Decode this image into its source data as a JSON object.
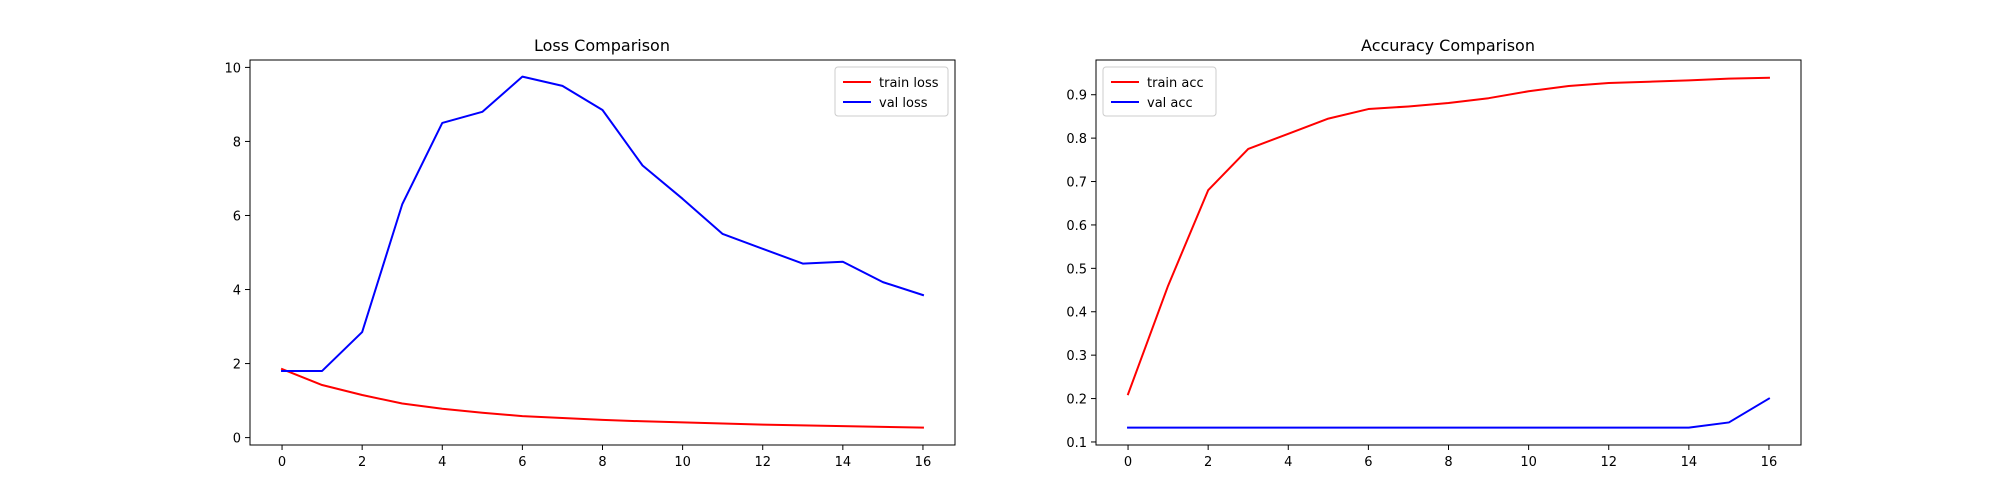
{
  "chart_data": [
    {
      "type": "line",
      "title": "Loss Comparison",
      "xlabel": "",
      "ylabel": "",
      "xlim": [
        -0.8,
        16.8
      ],
      "ylim": [
        -0.2,
        10.2
      ],
      "xticks": [
        0,
        2,
        4,
        6,
        8,
        10,
        12,
        14,
        16
      ],
      "yticks": [
        0,
        2,
        4,
        6,
        8,
        10
      ],
      "tick_decimals": 0,
      "grid": false,
      "legend": "upper right",
      "x": [
        0,
        1,
        2,
        3,
        4,
        5,
        6,
        7,
        8,
        9,
        10,
        11,
        12,
        13,
        14,
        15,
        16
      ],
      "series": [
        {
          "name": "train loss",
          "color": "#ff0000",
          "values": [
            1.85,
            1.42,
            1.15,
            0.92,
            0.78,
            0.67,
            0.58,
            0.53,
            0.48,
            0.44,
            0.41,
            0.38,
            0.35,
            0.33,
            0.31,
            0.29,
            0.27
          ]
        },
        {
          "name": "val loss",
          "color": "#0000ff",
          "values": [
            1.8,
            1.8,
            2.85,
            6.3,
            8.5,
            8.8,
            9.75,
            9.5,
            8.85,
            7.35,
            6.45,
            5.5,
            5.1,
            4.7,
            4.75,
            4.2,
            3.85
          ]
        }
      ]
    },
    {
      "type": "line",
      "title": "Accuracy Comparison",
      "xlabel": "",
      "ylabel": "",
      "xlim": [
        -0.8,
        16.8
      ],
      "ylim": [
        0.093,
        0.98
      ],
      "xticks": [
        0,
        2,
        4,
        6,
        8,
        10,
        12,
        14,
        16
      ],
      "yticks": [
        0.1,
        0.2,
        0.3,
        0.4,
        0.5,
        0.6,
        0.7,
        0.8,
        0.9
      ],
      "tick_decimals": 1,
      "grid": false,
      "legend": "upper left",
      "x": [
        0,
        1,
        2,
        3,
        4,
        5,
        6,
        7,
        8,
        9,
        10,
        11,
        12,
        13,
        14,
        15,
        16
      ],
      "series": [
        {
          "name": "train acc",
          "color": "#ff0000",
          "values": [
            0.21,
            0.46,
            0.68,
            0.775,
            0.81,
            0.845,
            0.867,
            0.873,
            0.881,
            0.892,
            0.908,
            0.92,
            0.927,
            0.93,
            0.933,
            0.937,
            0.939
          ]
        },
        {
          "name": "val acc",
          "color": "#0000ff",
          "values": [
            0.133,
            0.133,
            0.133,
            0.133,
            0.133,
            0.133,
            0.133,
            0.133,
            0.133,
            0.133,
            0.133,
            0.133,
            0.133,
            0.133,
            0.133,
            0.145,
            0.2
          ]
        }
      ]
    }
  ]
}
